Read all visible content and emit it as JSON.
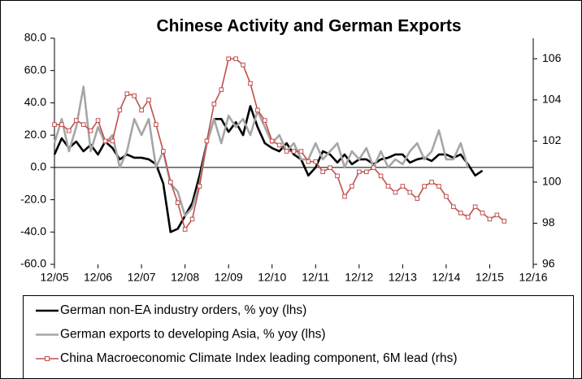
{
  "chart_data": {
    "type": "line",
    "title": "Chinese Activity and German Exports",
    "x": [
      "12/05",
      "02/06",
      "04/06",
      "06/06",
      "08/06",
      "10/06",
      "12/06",
      "02/07",
      "04/07",
      "06/07",
      "08/07",
      "10/07",
      "12/07",
      "02/08",
      "04/08",
      "06/08",
      "08/08",
      "10/08",
      "12/08",
      "02/09",
      "04/09",
      "06/09",
      "08/09",
      "10/09",
      "12/09",
      "02/10",
      "04/10",
      "06/10",
      "08/10",
      "10/10",
      "12/10",
      "02/11",
      "04/11",
      "06/11",
      "08/11",
      "10/11",
      "12/11",
      "02/12",
      "04/12",
      "06/12",
      "08/12",
      "10/12",
      "12/12",
      "02/13",
      "04/13",
      "06/13",
      "08/13",
      "10/13",
      "12/13",
      "02/14",
      "04/14",
      "06/14",
      "08/14",
      "10/14",
      "12/14",
      "02/15",
      "04/15",
      "06/15",
      "08/15",
      "10/15",
      "12/15",
      "02/16",
      "04/16"
    ],
    "series": [
      {
        "name": "German non-EA industry orders, % yoy (lhs)",
        "color": "#000000",
        "values": [
          8,
          18,
          12,
          16,
          10,
          14,
          8,
          16,
          12,
          5,
          8,
          6,
          6,
          5,
          2,
          -10,
          -40,
          -38,
          -30,
          -22,
          -5,
          15,
          30,
          30,
          22,
          28,
          20,
          38,
          25,
          15,
          12,
          10,
          15,
          8,
          5,
          -5,
          0,
          10,
          8,
          3,
          8,
          2,
          5,
          5,
          2,
          5,
          6,
          8,
          8,
          3,
          5,
          6,
          4,
          8,
          8,
          6,
          8,
          2,
          -5,
          -2,
          null,
          null,
          null
        ]
      },
      {
        "name": "German exports to developing Asia, % yoy (lhs)",
        "color": "#a6a6a6",
        "values": [
          15,
          30,
          10,
          25,
          50,
          10,
          25,
          15,
          20,
          0,
          10,
          30,
          20,
          30,
          0,
          10,
          -10,
          -15,
          -30,
          -25,
          -10,
          15,
          30,
          15,
          32,
          25,
          30,
          20,
          35,
          25,
          15,
          20,
          10,
          15,
          5,
          5,
          15,
          5,
          10,
          15,
          0,
          10,
          5,
          12,
          0,
          10,
          0,
          5,
          2,
          10,
          15,
          5,
          10,
          23,
          5,
          5,
          15,
          0,
          null,
          null,
          null,
          null,
          null
        ]
      },
      {
        "name": "China Macroeconomic Climate Index leading component, 6M lead (rhs)",
        "color": "#c0504d",
        "axis": "y2",
        "marker": "square",
        "values": [
          102.8,
          102.8,
          102.5,
          103.0,
          102.8,
          102.5,
          103.0,
          102.0,
          102.0,
          103.5,
          104.3,
          104.2,
          103.5,
          104.0,
          102.8,
          101.5,
          100.0,
          99.0,
          97.7,
          98.2,
          99.8,
          102.0,
          103.8,
          104.5,
          106.0,
          106.0,
          105.7,
          104.8,
          103.5,
          103.0,
          102.0,
          101.8,
          101.5,
          101.5,
          101.5,
          101.0,
          101.0,
          100.5,
          100.7,
          100.3,
          99.3,
          99.8,
          100.5,
          100.5,
          100.7,
          100.3,
          99.8,
          99.5,
          99.8,
          99.5,
          99.2,
          99.8,
          100.0,
          99.8,
          99.3,
          98.8,
          98.5,
          98.3,
          98.8,
          98.5,
          98.2,
          98.4,
          98.1
        ]
      }
    ],
    "xlim": [
      "12/05",
      "12/16"
    ],
    "xticks": [
      "12/05",
      "12/06",
      "12/07",
      "12/08",
      "12/09",
      "12/10",
      "12/11",
      "12/12",
      "12/13",
      "12/14",
      "12/15",
      "12/16"
    ],
    "ylim": [
      -60,
      80
    ],
    "yticks": [
      {
        "value": -60,
        "label": "-60.0"
      },
      {
        "value": -40,
        "label": "-40.0"
      },
      {
        "value": -20,
        "label": "-20.0"
      },
      {
        "value": 0,
        "label": "0.0"
      },
      {
        "value": 20,
        "label": "20.0"
      },
      {
        "value": 40,
        "label": "40.0"
      },
      {
        "value": 60,
        "label": "60.0"
      },
      {
        "value": 80,
        "label": "80.0"
      }
    ],
    "y2lim": [
      96,
      107
    ],
    "y2ticks": [
      96,
      98,
      100,
      102,
      104,
      106
    ],
    "grid": false,
    "legend": "bottom"
  }
}
